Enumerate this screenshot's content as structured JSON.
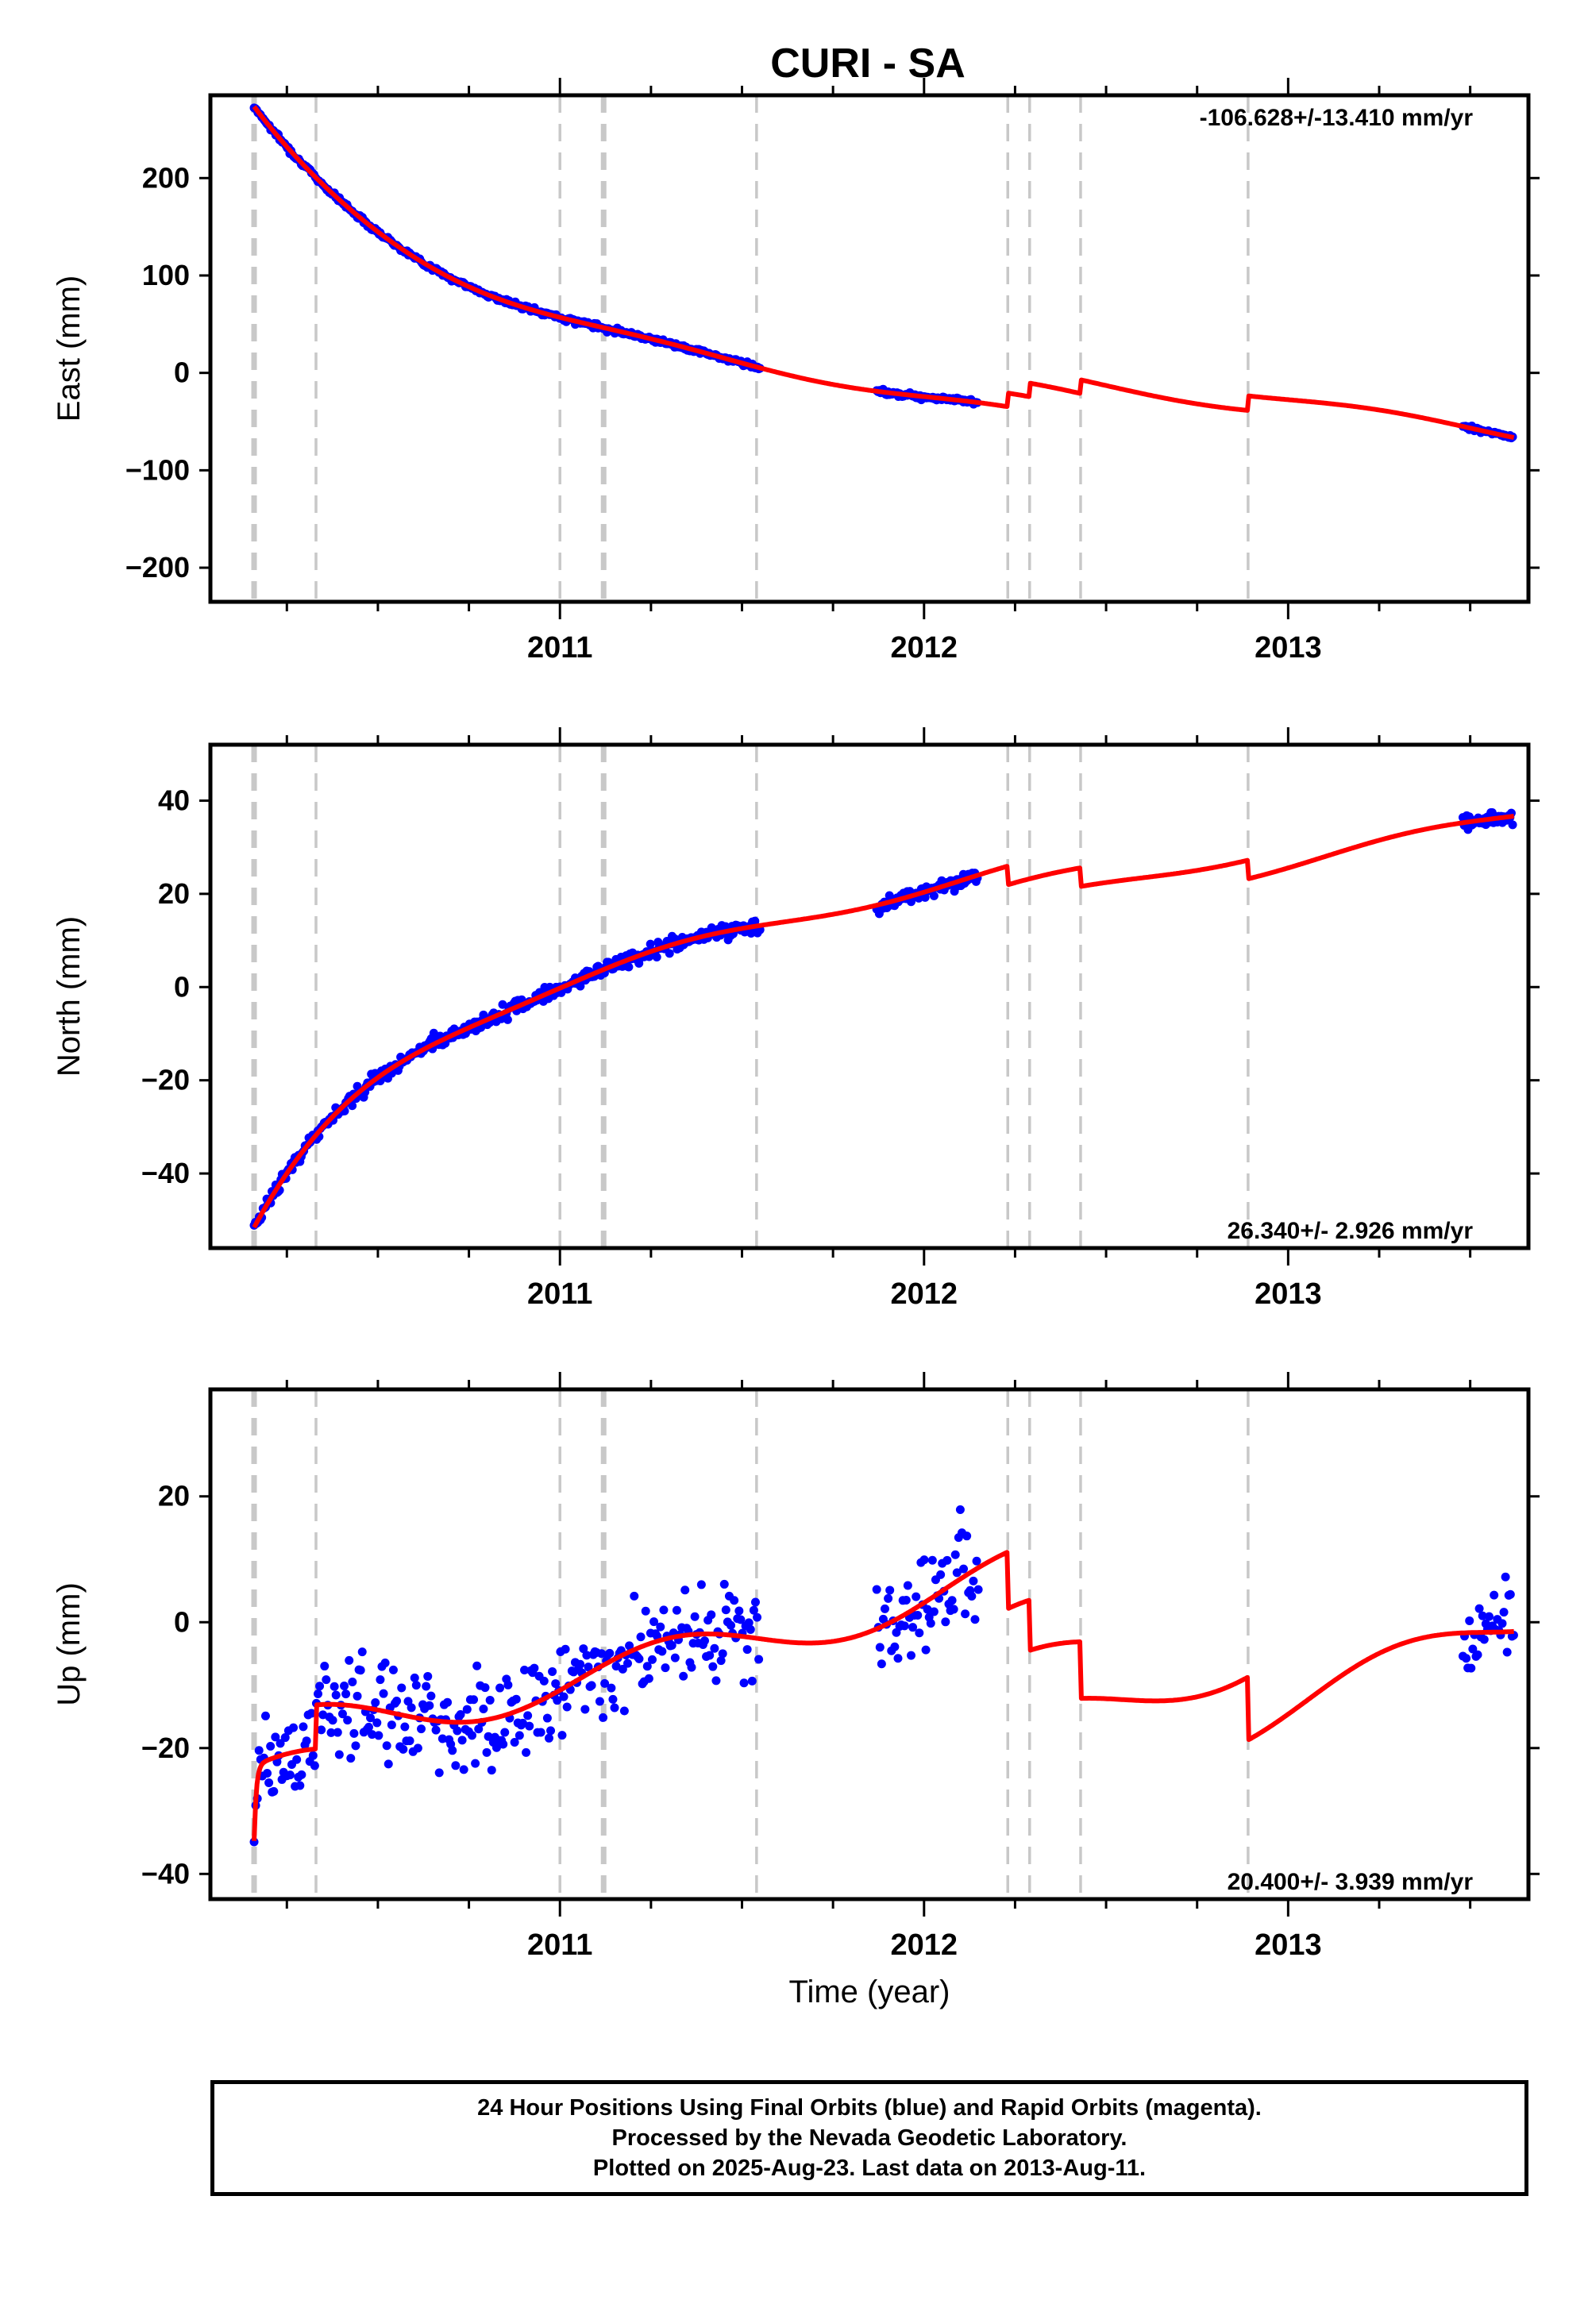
{
  "title": "CURI - SA",
  "chart_data": [
    {
      "type": "scatter",
      "ylabel": "East (mm)",
      "xlabel": "",
      "rate_label": "-106.628+/-13.410 mm/yr",
      "xlim": [
        2010.04,
        2013.66
      ],
      "ylim": [
        -235,
        285
      ],
      "yticks": [
        -200,
        -100,
        0,
        100,
        200
      ],
      "xticks": [
        2011,
        2012,
        2013
      ],
      "series": [
        {
          "name": "",
          "kind": "points",
          "color": "#0000ff"
        },
        {
          "name": "",
          "kind": "model-line",
          "color": "#ff0000"
        }
      ]
    },
    {
      "type": "scatter",
      "ylabel": "North (mm)",
      "xlabel": "",
      "rate_label": "26.340+/- 2.926 mm/yr",
      "xlim": [
        2010.04,
        2013.66
      ],
      "ylim": [
        -56,
        52
      ],
      "yticks": [
        -40,
        -20,
        0,
        20,
        40
      ],
      "xticks": [
        2011,
        2012,
        2013
      ],
      "series": [
        {
          "name": "",
          "kind": "points",
          "color": "#0000ff"
        },
        {
          "name": "",
          "kind": "model-line",
          "color": "#ff0000"
        }
      ]
    },
    {
      "type": "scatter",
      "ylabel": "Up (mm)",
      "xlabel": "Time (year)",
      "rate_label": "20.400+/- 3.939 mm/yr",
      "xlim": [
        2010.04,
        2013.66
      ],
      "ylim": [
        -44,
        37
      ],
      "yticks": [
        -40,
        -20,
        0,
        20
      ],
      "xticks": [
        2011,
        2012,
        2013
      ],
      "series": [
        {
          "name": "",
          "kind": "points",
          "color": "#0000ff"
        },
        {
          "name": "",
          "kind": "model-line",
          "color": "#ff0000"
        }
      ]
    }
  ],
  "offsets": [
    {
      "year": 2010.16,
      "style": "bold"
    },
    {
      "year": 2010.33,
      "style": "normal"
    },
    {
      "year": 2011.0,
      "style": "normal"
    },
    {
      "year": 2011.12,
      "style": "bold"
    },
    {
      "year": 2011.54,
      "style": "normal"
    },
    {
      "year": 2012.23,
      "style": "normal"
    },
    {
      "year": 2012.29,
      "style": "normal"
    },
    {
      "year": 2012.43,
      "style": "normal"
    },
    {
      "year": 2012.89,
      "style": "normal"
    }
  ],
  "footer": {
    "line1": "24 Hour Positions Using Final Orbits (blue) and Rapid Orbits (magenta).",
    "line2": "Processed by the Nevada Geodetic Laboratory.",
    "line3": "Plotted on 2025-Aug-23. Last data on 2013-Aug-11."
  },
  "colors": {
    "data": "#0000ff",
    "model": "#ff0000",
    "offset": "#c8c8c8",
    "frame": "#000000"
  }
}
